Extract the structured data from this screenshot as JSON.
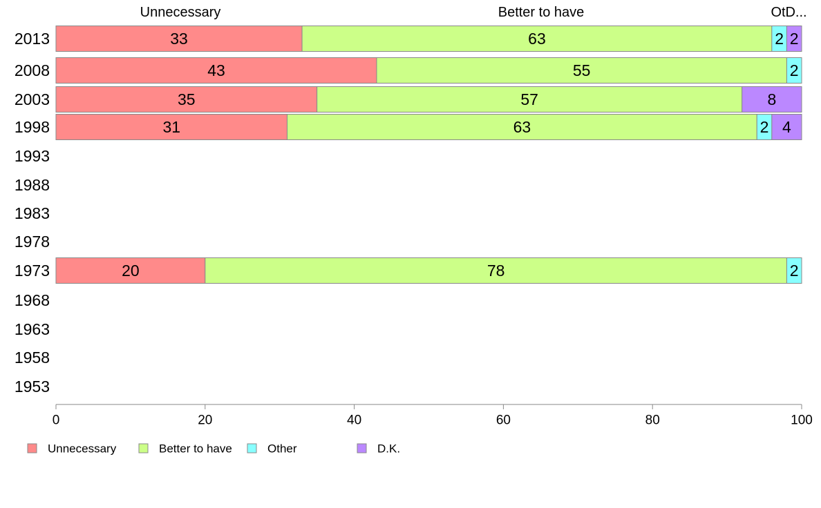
{
  "chart_data": {
    "type": "bar",
    "orientation": "horizontal",
    "stacked": true,
    "categories": [
      "2013",
      "2008",
      "2003",
      "1998",
      "1993",
      "1988",
      "1983",
      "1978",
      "1973",
      "1968",
      "1963",
      "1958",
      "1953"
    ],
    "series": [
      {
        "name": "Unnecessary",
        "color": "#ff8a8a",
        "values": [
          33,
          43,
          35,
          31,
          null,
          null,
          null,
          null,
          20,
          null,
          null,
          null,
          null
        ]
      },
      {
        "name": "Better to have",
        "color": "#ccff88",
        "values": [
          63,
          55,
          57,
          63,
          null,
          null,
          null,
          null,
          78,
          null,
          null,
          null,
          null
        ]
      },
      {
        "name": "Other",
        "color": "#88ffff",
        "values": [
          2,
          2,
          0,
          2,
          null,
          null,
          null,
          null,
          2,
          null,
          null,
          null,
          null
        ]
      },
      {
        "name": "D.K.",
        "color": "#bb88ff",
        "values": [
          2,
          0,
          8,
          4,
          null,
          null,
          null,
          null,
          0,
          null,
          null,
          null,
          null
        ]
      }
    ],
    "top_labels": [
      "Unnecessary",
      "Better to have",
      "Ot",
      "D..."
    ],
    "xlim": [
      0,
      100
    ],
    "xticks": [
      0,
      20,
      40,
      60,
      80,
      100
    ],
    "legend": [
      "Unnecessary",
      "Better to have",
      "Other",
      "D.K."
    ],
    "legend_position": "bottom",
    "grid": false
  }
}
